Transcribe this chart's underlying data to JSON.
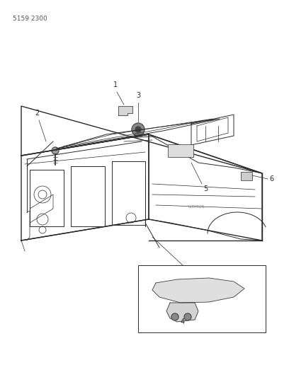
{
  "page_id": "5159 2300",
  "bg_color": "#ffffff",
  "line_color": "#2a2a2a",
  "fig_width": 4.08,
  "fig_height": 5.33,
  "dpi": 100
}
